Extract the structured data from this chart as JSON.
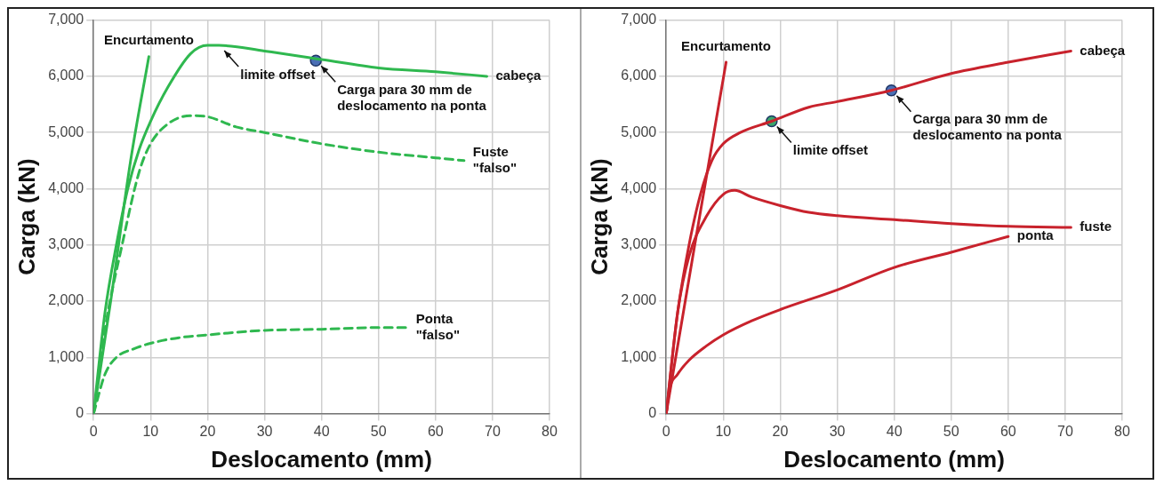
{
  "chart_data": [
    {
      "type": "line",
      "xlabel": "Deslocamento (mm)",
      "ylabel": "Carga (kN)",
      "xlim": [
        0,
        80
      ],
      "xticks": [
        0,
        10,
        20,
        30,
        40,
        50,
        60,
        70,
        80
      ],
      "ylim": [
        0,
        7000
      ],
      "yticks": [
        0,
        {
          "value": 1000,
          "label": "1,000"
        },
        {
          "value": 2000,
          "label": "2,000"
        },
        {
          "value": 3000,
          "label": "3,000"
        },
        {
          "value": 4000,
          "label": "4,000"
        },
        {
          "value": 5000,
          "label": "5,000"
        },
        {
          "value": 6000,
          "label": "6,000"
        },
        {
          "value": 7000,
          "label": "7,000"
        }
      ],
      "grid": true,
      "marker": "none",
      "series": [
        {
          "name": "Encurtamento",
          "color": "#2fb84f",
          "line_style": "solid",
          "x": [
            0,
            3,
            6.5,
            9.7
          ],
          "values": [
            0,
            2000,
            4500,
            6350
          ]
        },
        {
          "name": "cabeça",
          "color": "#2fb84f",
          "line_style": "solid",
          "x": [
            0,
            2,
            4,
            6,
            8,
            10,
            13,
            17,
            20,
            22,
            30,
            40,
            50,
            60,
            69
          ],
          "values": [
            0,
            1800,
            3000,
            4000,
            4700,
            5200,
            5800,
            6400,
            6550,
            6550,
            6450,
            6300,
            6150,
            6080,
            6000
          ]
        },
        {
          "name": "Fuste \"falso\"",
          "color": "#2fb84f",
          "line_style": "dashed",
          "x": [
            0,
            2,
            5,
            8,
            10,
            13,
            17,
            20,
            25,
            30,
            40,
            50,
            60,
            65
          ],
          "values": [
            0,
            1500,
            3000,
            4300,
            4800,
            5150,
            5300,
            5280,
            5100,
            5000,
            4800,
            4650,
            4550,
            4500
          ]
        },
        {
          "name": "Ponta \"falso\"",
          "color": "#2fb84f",
          "line_style": "dashed",
          "x": [
            0,
            2,
            4,
            7,
            10,
            15,
            20,
            30,
            40,
            50,
            55
          ],
          "values": [
            0,
            700,
            1000,
            1150,
            1250,
            1350,
            1400,
            1480,
            1500,
            1530,
            1530
          ]
        },
        {
          "type": "scatter",
          "marker": "circle",
          "color": "#4a6fb5",
          "x": [
            39
          ],
          "values": [
            6280
          ]
        }
      ],
      "annotations": [
        {
          "text": "limite offset",
          "x": 22,
          "y": 6550
        },
        {
          "text": "Carga para 30 mm de deslocamento na ponta",
          "x": 39,
          "y": 6280
        }
      ]
    },
    {
      "type": "line",
      "xlabel": "Deslocamento (mm)",
      "ylabel": "Carga (kN)",
      "xlim": [
        0,
        80
      ],
      "xticks": [
        0,
        10,
        20,
        30,
        40,
        50,
        60,
        70,
        80
      ],
      "ylim": [
        0,
        7000
      ],
      "yticks": [
        0,
        {
          "value": 1000,
          "label": "1,000"
        },
        {
          "value": 2000,
          "label": "2,000"
        },
        {
          "value": 3000,
          "label": "3,000"
        },
        {
          "value": 4000,
          "label": "4,000"
        },
        {
          "value": 5000,
          "label": "5,000"
        },
        {
          "value": 6000,
          "label": "6,000"
        },
        {
          "value": 7000,
          "label": "7,000"
        }
      ],
      "grid": true,
      "marker": "none",
      "series": [
        {
          "name": "Encurtamento",
          "color": "#c8222c",
          "line_style": "solid",
          "x": [
            0,
            5,
            10.5
          ],
          "values": [
            0,
            3000,
            6250
          ]
        },
        {
          "name": "cabeça",
          "color": "#c8222c",
          "line_style": "solid",
          "x": [
            0,
            2,
            4,
            6,
            8,
            10,
            13,
            18.5,
            25,
            30,
            39.5,
            50,
            60,
            71
          ],
          "values": [
            0,
            1800,
            3000,
            3900,
            4500,
            4800,
            5000,
            5200,
            5450,
            5550,
            5750,
            6050,
            6250,
            6450
          ]
        },
        {
          "name": "fuste",
          "color": "#c8222c",
          "line_style": "solid",
          "x": [
            0,
            2,
            4,
            7,
            10,
            12,
            15,
            20,
            25,
            30,
            40,
            50,
            60,
            71
          ],
          "values": [
            0,
            1800,
            2800,
            3500,
            3900,
            3970,
            3850,
            3700,
            3580,
            3520,
            3450,
            3380,
            3330,
            3310
          ]
        },
        {
          "name": "ponta",
          "color": "#c8222c",
          "line_style": "solid",
          "x": [
            0,
            0.5,
            2,
            4,
            7,
            10,
            15,
            20,
            30,
            40,
            50,
            60
          ],
          "values": [
            0,
            400,
            700,
            950,
            1200,
            1400,
            1650,
            1850,
            2200,
            2600,
            2870,
            3150
          ]
        },
        {
          "type": "scatter",
          "marker": "circle",
          "color": "#3aa56b",
          "x": [
            18.5
          ],
          "values": [
            5200
          ]
        },
        {
          "type": "scatter",
          "marker": "circle",
          "color": "#4a6fb5",
          "x": [
            39.5
          ],
          "values": [
            5750
          ]
        }
      ],
      "annotations": [
        {
          "text": "limite offset",
          "x": 18.5,
          "y": 5200
        },
        {
          "text": "Carga para 30 mm de deslocamento na ponta",
          "x": 39.5,
          "y": 5750
        }
      ]
    }
  ]
}
